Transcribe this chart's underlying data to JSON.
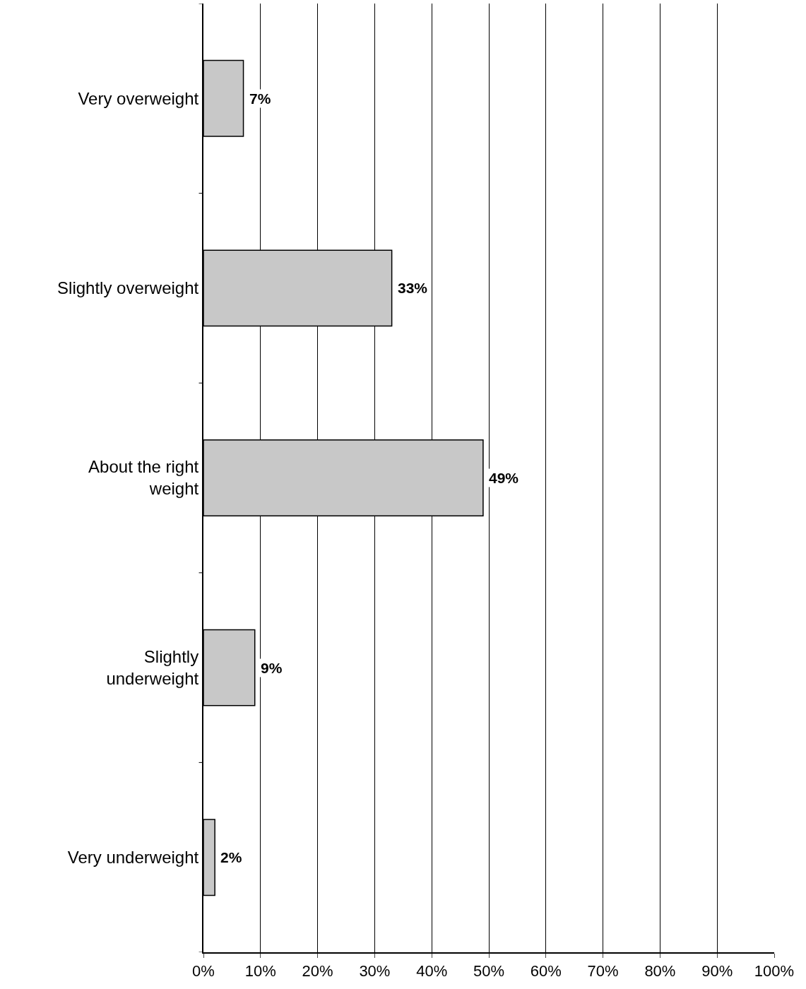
{
  "chart_data": {
    "type": "bar",
    "orientation": "horizontal",
    "categories": [
      "Very overweight",
      "Slightly overweight",
      "About the right weight",
      "Slightly underweight",
      "Very underweight"
    ],
    "values": [
      7,
      33,
      49,
      9,
      2
    ],
    "value_labels": [
      "7%",
      "33%",
      "49%",
      "9%",
      "2%"
    ],
    "color": "#c8c8c8",
    "xlim": [
      0,
      100
    ],
    "xticks": [
      {
        "value": 0,
        "label": "0%"
      },
      {
        "value": 10,
        "label": "10%"
      },
      {
        "value": 20,
        "label": "20%"
      },
      {
        "value": 30,
        "label": "30%"
      },
      {
        "value": 40,
        "label": "40%"
      },
      {
        "value": 50,
        "label": "50%"
      },
      {
        "value": 60,
        "label": "60%"
      },
      {
        "value": 70,
        "label": "70%"
      },
      {
        "value": 80,
        "label": "80%"
      },
      {
        "value": 90,
        "label": "90%"
      },
      {
        "value": 100,
        "label": "100%"
      }
    ],
    "grid": "x"
  }
}
